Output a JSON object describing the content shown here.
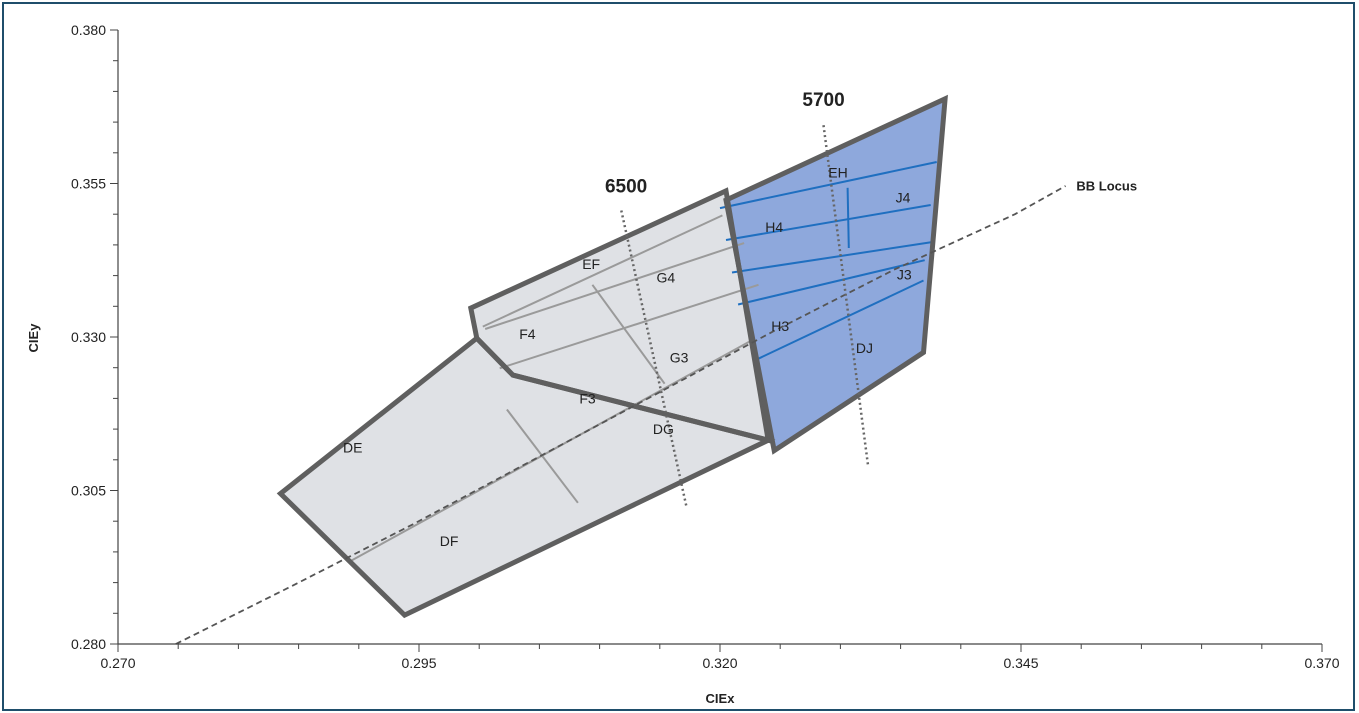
{
  "chart_data": {
    "type": "scatter",
    "title": "",
    "xlabel": "CIEx",
    "ylabel": "CIEy",
    "xlim": [
      0.27,
      0.37
    ],
    "ylim": [
      0.28,
      0.38
    ],
    "xticks": [
      "0.270",
      "0.295",
      "0.320",
      "0.345",
      "0.370"
    ],
    "yticks": [
      "0.280",
      "0.305",
      "0.330",
      "0.355",
      "0.380"
    ],
    "grid": false,
    "colors": {
      "gray_fill": "#dfe1e5",
      "blue_fill": "#8ea8dc",
      "outline": "#5f5f5f",
      "gray_line": "#9a9a9a",
      "blue_line": "#1f6fc0",
      "frame": "#1f4e6b"
    },
    "regions": [
      {
        "name": "gray-lower",
        "fill": "#dfe1e5",
        "points": [
          [
            0.2835,
            0.3045
          ],
          [
            0.2998,
            0.3298
          ],
          [
            0.3028,
            0.3238
          ],
          [
            0.324,
            0.3132
          ],
          [
            0.2938,
            0.2847
          ]
        ]
      },
      {
        "name": "gray-upper",
        "fill": "#dfe1e5",
        "points": [
          [
            0.2998,
            0.3298
          ],
          [
            0.2993,
            0.3347
          ],
          [
            0.3205,
            0.3538
          ],
          [
            0.324,
            0.3132
          ],
          [
            0.3028,
            0.3238
          ]
        ]
      },
      {
        "name": "blue",
        "fill": "#8ea8dc",
        "points": [
          [
            0.3205,
            0.3523
          ],
          [
            0.3387,
            0.3688
          ],
          [
            0.3369,
            0.3275
          ],
          [
            0.3245,
            0.3115
          ]
        ]
      }
    ],
    "gray_lines": [
      [
        [
          0.2893,
          0.2935
        ],
        [
          0.3225,
          0.3293
        ]
      ],
      [
        [
          0.3017,
          0.3249
        ],
        [
          0.3232,
          0.3385
        ]
      ],
      [
        [
          0.3005,
          0.3313
        ],
        [
          0.322,
          0.3453
        ]
      ],
      [
        [
          0.3003,
          0.3317
        ],
        [
          0.3202,
          0.3498
        ]
      ],
      [
        [
          0.3023,
          0.3182
        ],
        [
          0.3082,
          0.303
        ]
      ],
      [
        [
          0.3094,
          0.3385
        ],
        [
          0.3154,
          0.3224
        ]
      ]
    ],
    "blue_lines": [
      [
        [
          0.32,
          0.351
        ],
        [
          0.338,
          0.3585
        ]
      ],
      [
        [
          0.3205,
          0.3458
        ],
        [
          0.3375,
          0.3515
        ]
      ],
      [
        [
          0.321,
          0.3405
        ],
        [
          0.3378,
          0.3455
        ]
      ],
      [
        [
          0.3215,
          0.3353
        ],
        [
          0.337,
          0.3425
        ]
      ],
      [
        [
          0.3229,
          0.3262
        ],
        [
          0.3369,
          0.3392
        ]
      ],
      [
        [
          0.3306,
          0.3543
        ],
        [
          0.3307,
          0.3445
        ]
      ]
    ],
    "bins": [
      {
        "label": "DE",
        "x": 0.2895,
        "y": 0.312
      },
      {
        "label": "DF",
        "x": 0.2975,
        "y": 0.2968
      },
      {
        "label": "F4",
        "x": 0.304,
        "y": 0.3305
      },
      {
        "label": "F3",
        "x": 0.309,
        "y": 0.32
      },
      {
        "label": "EF",
        "x": 0.3093,
        "y": 0.3419
      },
      {
        "label": "G4",
        "x": 0.3155,
        "y": 0.3397
      },
      {
        "label": "G3",
        "x": 0.3166,
        "y": 0.3267
      },
      {
        "label": "DG",
        "x": 0.3153,
        "y": 0.315
      },
      {
        "label": "H4",
        "x": 0.3245,
        "y": 0.3479
      },
      {
        "label": "H3",
        "x": 0.325,
        "y": 0.3318
      },
      {
        "label": "EH",
        "x": 0.3298,
        "y": 0.3568
      },
      {
        "label": "J4",
        "x": 0.3352,
        "y": 0.3527
      },
      {
        "label": "J3",
        "x": 0.3353,
        "y": 0.3402
      },
      {
        "label": "DJ",
        "x": 0.332,
        "y": 0.3282
      }
    ],
    "cct_lines": [
      {
        "label": "6500",
        "label_at": [
          0.3122,
          0.3535
        ],
        "points": [
          [
            0.3118,
            0.3506
          ],
          [
            0.3172,
            0.3025
          ]
        ]
      },
      {
        "label": "5700",
        "label_at": [
          0.3286,
          0.3676
        ],
        "points": [
          [
            0.3286,
            0.3645
          ],
          [
            0.3323,
            0.309
          ]
        ]
      }
    ],
    "bb_locus": {
      "label": "BB Locus",
      "label_at": [
        0.3496,
        0.3547
      ],
      "points": [
        [
          0.2748,
          0.28
        ],
        [
          0.2845,
          0.2895
        ],
        [
          0.2945,
          0.2995
        ],
        [
          0.3045,
          0.31
        ],
        [
          0.3145,
          0.3205
        ],
        [
          0.3245,
          0.331
        ],
        [
          0.3345,
          0.341
        ],
        [
          0.3445,
          0.35
        ],
        [
          0.3487,
          0.3546
        ]
      ]
    }
  }
}
